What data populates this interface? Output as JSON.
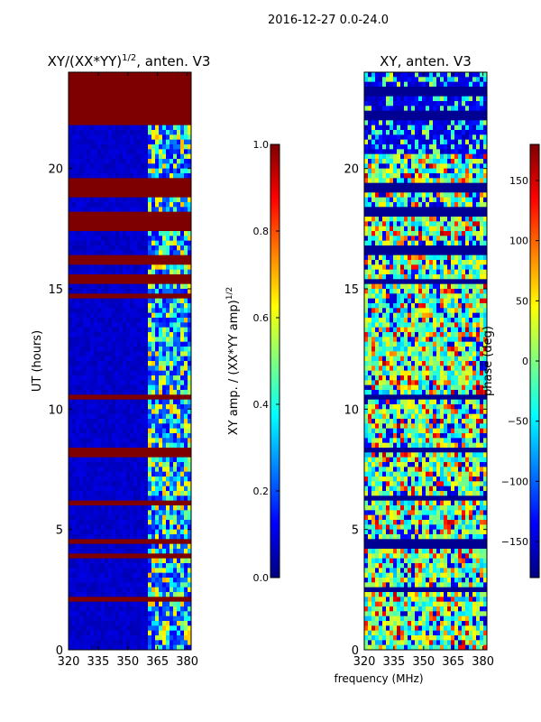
{
  "suptitle": "2016-12-27 0.0-24.0",
  "colors": {
    "jet": [
      "#00007f",
      "#0000ff",
      "#007fff",
      "#00ffff",
      "#7fff7f",
      "#ffff00",
      "#ff7f00",
      "#ff0000",
      "#7f0000"
    ]
  },
  "chart_data": [
    {
      "type": "heatmap",
      "title": "XY/(XX*YY)",
      "title_exponent": "1/2",
      "title_suffix": ", anten. V3",
      "xlabel": "",
      "ylabel": "UT (hours)",
      "xlim": [
        320,
        382
      ],
      "ylim": [
        0,
        24
      ],
      "x_ticks": [
        "320",
        "335",
        "350",
        "365",
        "380"
      ],
      "x_tick_values": [
        320,
        335,
        350,
        365,
        380
      ],
      "y_ticks": [
        "0",
        "5",
        "10",
        "15",
        "20"
      ],
      "y_tick_values": [
        0,
        5,
        10,
        15,
        20
      ],
      "active_band_MHz": [
        360,
        382
      ],
      "flagged_time_ranges_h": [
        [
          21.9,
          24.0
        ],
        [
          18.8,
          19.5
        ],
        [
          17.5,
          18.2
        ],
        [
          16.0,
          16.3
        ],
        [
          15.3,
          15.6
        ],
        [
          14.6,
          14.8
        ],
        [
          10.4,
          10.6
        ],
        [
          8.1,
          8.3
        ],
        [
          6.1,
          6.3
        ],
        [
          4.4,
          4.5
        ],
        [
          3.8,
          4.0
        ],
        [
          2.1,
          2.3
        ]
      ],
      "colorbar": {
        "label": "XY amp. / (XX*YY amp)",
        "label_exponent": "1/2",
        "range": [
          0.0,
          1.0
        ],
        "ticks": [
          "0.0",
          "0.2",
          "0.4",
          "0.6",
          "0.8",
          "1.0"
        ],
        "tick_values": [
          0.0,
          0.2,
          0.4,
          0.6,
          0.8,
          1.0
        ]
      }
    },
    {
      "type": "heatmap",
      "title": "XY, anten. V3",
      "xlabel": "frequency (MHz)",
      "ylabel": "",
      "xlim": [
        320,
        382
      ],
      "ylim": [
        0,
        24
      ],
      "x_ticks": [
        "320",
        "335",
        "350",
        "365",
        "380"
      ],
      "x_tick_values": [
        320,
        335,
        350,
        365,
        380
      ],
      "y_ticks": [
        "0",
        "5",
        "10",
        "15",
        "20"
      ],
      "y_tick_values": [
        0,
        5,
        10,
        15,
        20
      ],
      "flagged_time_ranges_h": [
        [
          23.0,
          23.4
        ],
        [
          22.0,
          22.3
        ],
        [
          19.0,
          19.3
        ],
        [
          18.1,
          18.3
        ],
        [
          16.5,
          16.8
        ],
        [
          15.2,
          15.4
        ],
        [
          10.4,
          10.6
        ],
        [
          8.2,
          8.4
        ],
        [
          6.2,
          6.4
        ],
        [
          4.3,
          4.5
        ],
        [
          2.4,
          2.6
        ],
        [
          2.0,
          2.1
        ]
      ],
      "colorbar": {
        "label": "phase (deg)",
        "range": [
          -180,
          180
        ],
        "ticks": [
          "150",
          "100",
          "50",
          "0",
          "−50",
          "−100",
          "−150"
        ],
        "tick_values": [
          150,
          100,
          50,
          0,
          -50,
          -100,
          -150
        ]
      }
    }
  ]
}
